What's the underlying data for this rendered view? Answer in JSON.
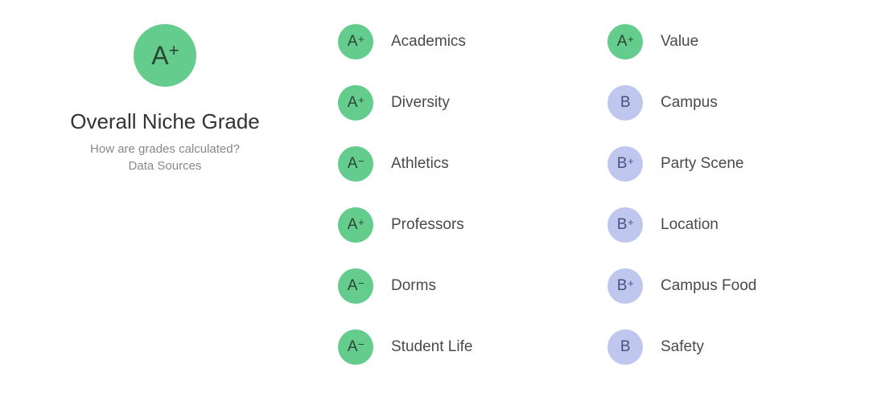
{
  "colors": {
    "A": {
      "bg": "#64cc8c",
      "fg": "#2b4434"
    },
    "B": {
      "bg": "#c0c7ef",
      "fg": "#4a5080"
    },
    "overall_bg": "#64cc8c",
    "overall_fg": "#2b4434",
    "background": "#ffffff",
    "label_color": "#4a4a4a",
    "title_color": "#333333",
    "link_color": "#888888"
  },
  "typography": {
    "overall_badge_fontsize": 32,
    "overall_title_fontsize": 26,
    "link_fontsize": 15,
    "grade_badge_fontsize": 19,
    "grade_label_fontsize": 19
  },
  "layout": {
    "overall_badge_size": 78,
    "grade_badge_size": 44,
    "row_gap": 32,
    "badge_label_gap": 22
  },
  "overall": {
    "grade_letter": "A",
    "grade_suffix": "+",
    "title": "Overall Niche Grade",
    "link_calc": "How are grades calculated?",
    "link_sources": "Data Sources"
  },
  "columns": [
    [
      {
        "letter": "A",
        "suffix": "+",
        "label": "Academics"
      },
      {
        "letter": "A",
        "suffix": "+",
        "label": "Diversity"
      },
      {
        "letter": "A",
        "suffix": "-",
        "label": "Athletics"
      },
      {
        "letter": "A",
        "suffix": "+",
        "label": "Professors"
      },
      {
        "letter": "A",
        "suffix": "-",
        "label": "Dorms"
      },
      {
        "letter": "A",
        "suffix": "-",
        "label": "Student Life"
      }
    ],
    [
      {
        "letter": "A",
        "suffix": "+",
        "label": "Value"
      },
      {
        "letter": "B",
        "suffix": "",
        "label": "Campus"
      },
      {
        "letter": "B",
        "suffix": "+",
        "label": "Party Scene"
      },
      {
        "letter": "B",
        "suffix": "+",
        "label": "Location"
      },
      {
        "letter": "B",
        "suffix": "+",
        "label": "Campus Food"
      },
      {
        "letter": "B",
        "suffix": "",
        "label": "Safety"
      }
    ]
  ]
}
